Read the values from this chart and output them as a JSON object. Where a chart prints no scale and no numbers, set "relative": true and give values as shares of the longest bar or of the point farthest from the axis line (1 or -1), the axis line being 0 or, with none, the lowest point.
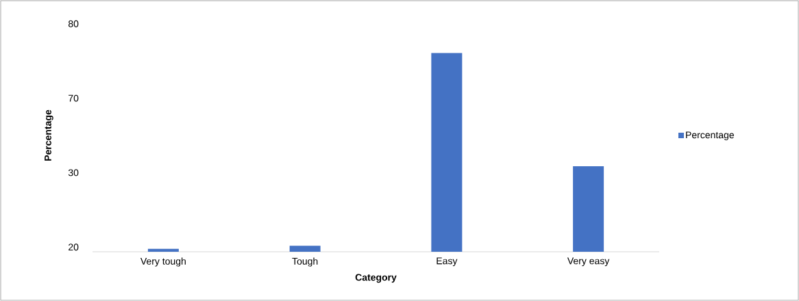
{
  "chart_data": {
    "type": "bar",
    "xlabel": "Category",
    "ylabel": "Percentage",
    "relative": true,
    "categories": [
      "Very tough",
      "Tough",
      "Easy",
      "Very easy"
    ],
    "series": [
      {
        "name": "Percentage",
        "color": "#4472c4",
        "values": [
          0.015,
          0.03,
          1,
          0.43
        ]
      }
    ],
    "annotations": [
      "80",
      "70",
      "30",
      "20"
    ],
    "legend": "right"
  }
}
